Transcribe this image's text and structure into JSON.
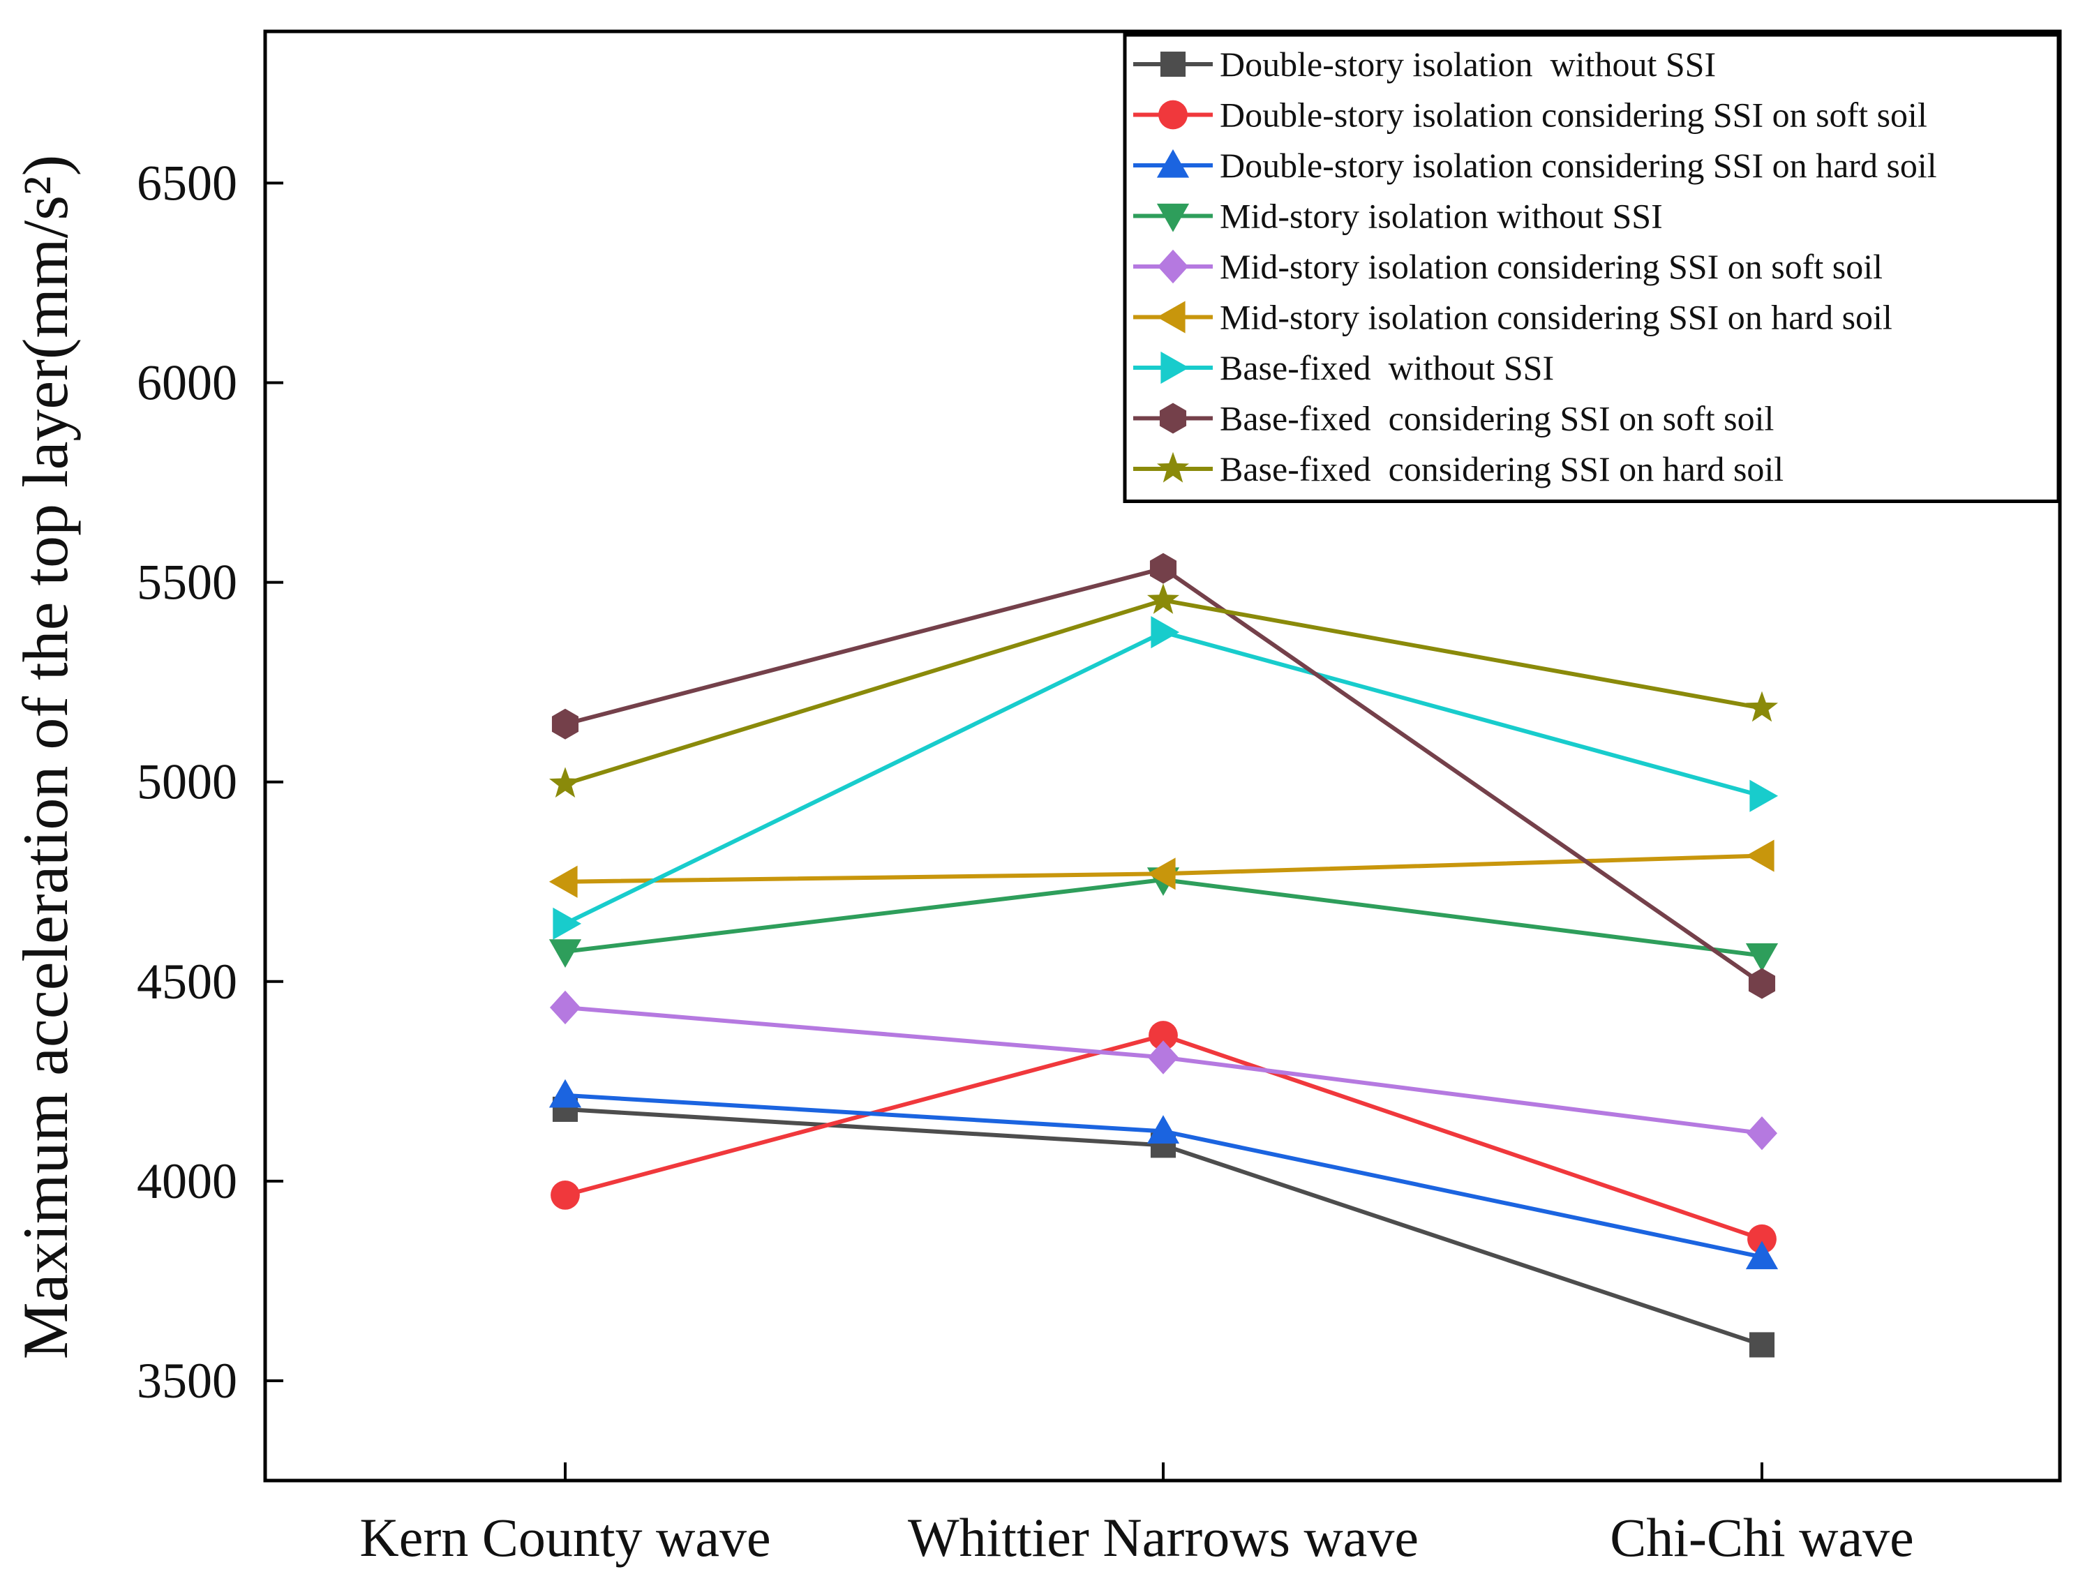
{
  "chart_data": {
    "type": "line",
    "title": "",
    "xlabel": "",
    "ylabel": "Maximum acceleration of the top layer(mm/s²)",
    "ylim": [
      3250,
      6880
    ],
    "yticks": [
      3500,
      4000,
      4500,
      5000,
      5500,
      6000,
      6500
    ],
    "categories": [
      "Kern County wave",
      "Whittier Narrows wave",
      "Chi-Chi wave"
    ],
    "legend_position": "top-right",
    "grid": false,
    "series": [
      {
        "name": "Double-story isolation  without SSI",
        "color": "#4d4d4d",
        "marker": "square",
        "values": [
          4180,
          4090,
          3590
        ]
      },
      {
        "name": "Double-story isolation considering SSI on soft soil",
        "color": "#f0383c",
        "marker": "circle",
        "values": [
          3965,
          4365,
          3855
        ]
      },
      {
        "name": "Double-story isolation considering SSI on hard soil",
        "color": "#1b64e0",
        "marker": "triangle-up",
        "values": [
          4215,
          4125,
          3810
        ]
      },
      {
        "name": "Mid-story isolation without SSI",
        "color": "#2e9e5b",
        "marker": "triangle-down",
        "values": [
          4575,
          4755,
          4565
        ]
      },
      {
        "name": "Mid-story isolation considering SSI on soft soil",
        "color": "#b579e0",
        "marker": "diamond",
        "values": [
          4435,
          4310,
          4120
        ]
      },
      {
        "name": "Mid-story isolation considering SSI on hard soil",
        "color": "#c8960c",
        "marker": "triangle-left",
        "values": [
          4750,
          4770,
          4815
        ]
      },
      {
        "name": "Base-fixed  without SSI",
        "color": "#18cccc",
        "marker": "triangle-right",
        "values": [
          4645,
          5375,
          4965
        ]
      },
      {
        "name": "Base-fixed  considering SSI on soft soil",
        "color": "#74404a",
        "marker": "hexagon",
        "values": [
          5145,
          5535,
          4495
        ]
      },
      {
        "name": "Base-fixed  considering SSI on hard soil",
        "color": "#8a8a0a",
        "marker": "star",
        "values": [
          4995,
          5455,
          5185
        ]
      }
    ]
  }
}
